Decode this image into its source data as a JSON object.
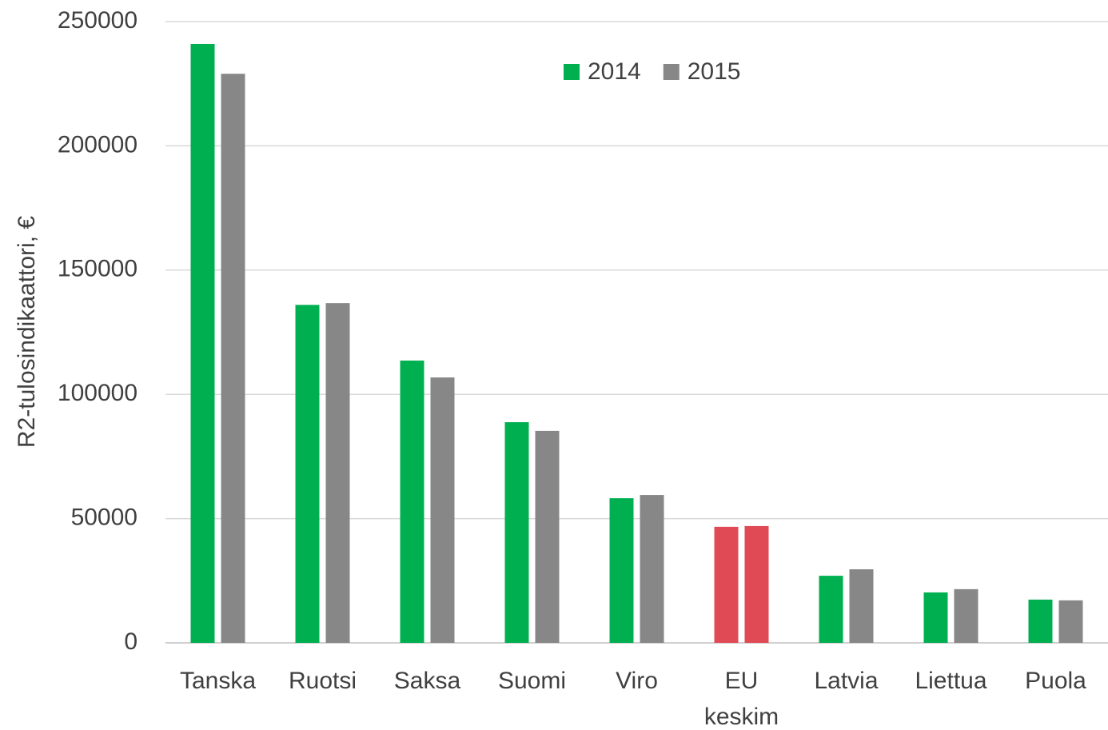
{
  "chart_data": {
    "type": "bar",
    "y_label": "R2-tulosindikaattori, €",
    "categories": [
      "Tanska",
      "Ruotsi",
      "Saksa",
      "Suomi",
      "Viro",
      "EU keskim",
      "Latvia",
      "Liettua",
      "Puola"
    ],
    "series": [
      {
        "name": "2014",
        "color": "#00b050",
        "colors": [
          "#00b050",
          "#00b050",
          "#00b050",
          "#00b050",
          "#00b050",
          "#e04a55",
          "#00b050",
          "#00b050",
          "#00b050"
        ],
        "values": [
          241000,
          136000,
          113600,
          88800,
          58200,
          46700,
          27000,
          20300,
          17400
        ]
      },
      {
        "name": "2015",
        "color": "#878787",
        "colors": [
          "#878787",
          "#878787",
          "#878787",
          "#878787",
          "#878787",
          "#e04a55",
          "#878787",
          "#878787",
          "#878787"
        ],
        "values": [
          229000,
          136700,
          106800,
          85300,
          59500,
          47000,
          29600,
          21600,
          17100
        ]
      }
    ],
    "ylim": [
      0,
      250000
    ],
    "yticks": [
      0,
      50000,
      100000,
      150000,
      200000,
      250000
    ],
    "grid": true,
    "legend": "top"
  }
}
